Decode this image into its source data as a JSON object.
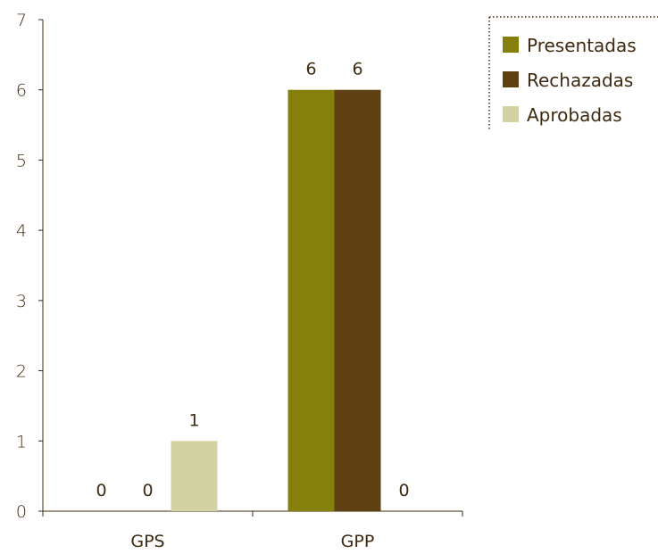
{
  "chart_data": {
    "type": "bar",
    "categories": [
      "GPS",
      "GPP"
    ],
    "series": [
      {
        "name": "Presentadas",
        "values": [
          0,
          6
        ],
        "color": "#857f0c"
      },
      {
        "name": "Rechazadas",
        "values": [
          0,
          6
        ],
        "color": "#5e4013"
      },
      {
        "name": "Aprobadas",
        "values": [
          1,
          0
        ],
        "color": "#d3d2a2"
      }
    ],
    "ylim": [
      0,
      7
    ],
    "yticks": [
      "0",
      "1",
      "2",
      "3",
      "4",
      "5",
      "6",
      "7"
    ],
    "grid": false,
    "legend_position": "top-right",
    "data_labels": [
      [
        "0",
        "6"
      ],
      [
        "0",
        "6"
      ],
      [
        "1",
        "0"
      ]
    ]
  }
}
